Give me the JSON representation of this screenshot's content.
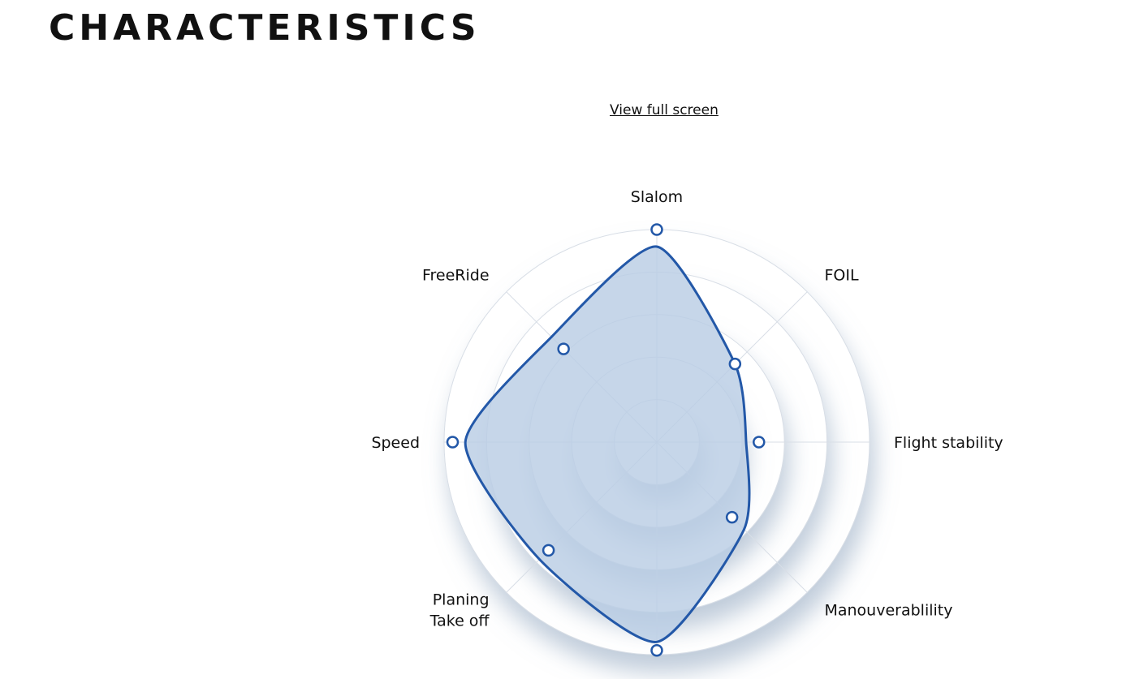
{
  "header": {
    "title": "CHARACTERISTICS"
  },
  "toolbar": {
    "fullscreen_label": "View full screen"
  },
  "colors": {
    "series_stroke": "#2358a8",
    "series_fill": "#b9cde4",
    "grid": "#d8dee6",
    "ring_shadow": "#9fb2c9"
  },
  "chart_data": {
    "type": "radar",
    "axes": [
      [
        "Slalom"
      ],
      [
        "FOIL"
      ],
      [
        "Flight stability"
      ],
      [
        "Manouverablility"
      ],
      [
        ""
      ],
      [
        "Planing",
        "Take off"
      ],
      [
        "Speed"
      ],
      [
        "FreeRide"
      ]
    ],
    "max": 5,
    "rings": 5,
    "series": [
      {
        "values": [
          4.6,
          2.6,
          2.1,
          2.9,
          4.7,
          3.9,
          4.5,
          3.5
        ]
      }
    ],
    "reference_markers": [
      5,
      2.6,
      2.4,
      2.5,
      4.9,
      3.6,
      4.8,
      3.1
    ]
  }
}
